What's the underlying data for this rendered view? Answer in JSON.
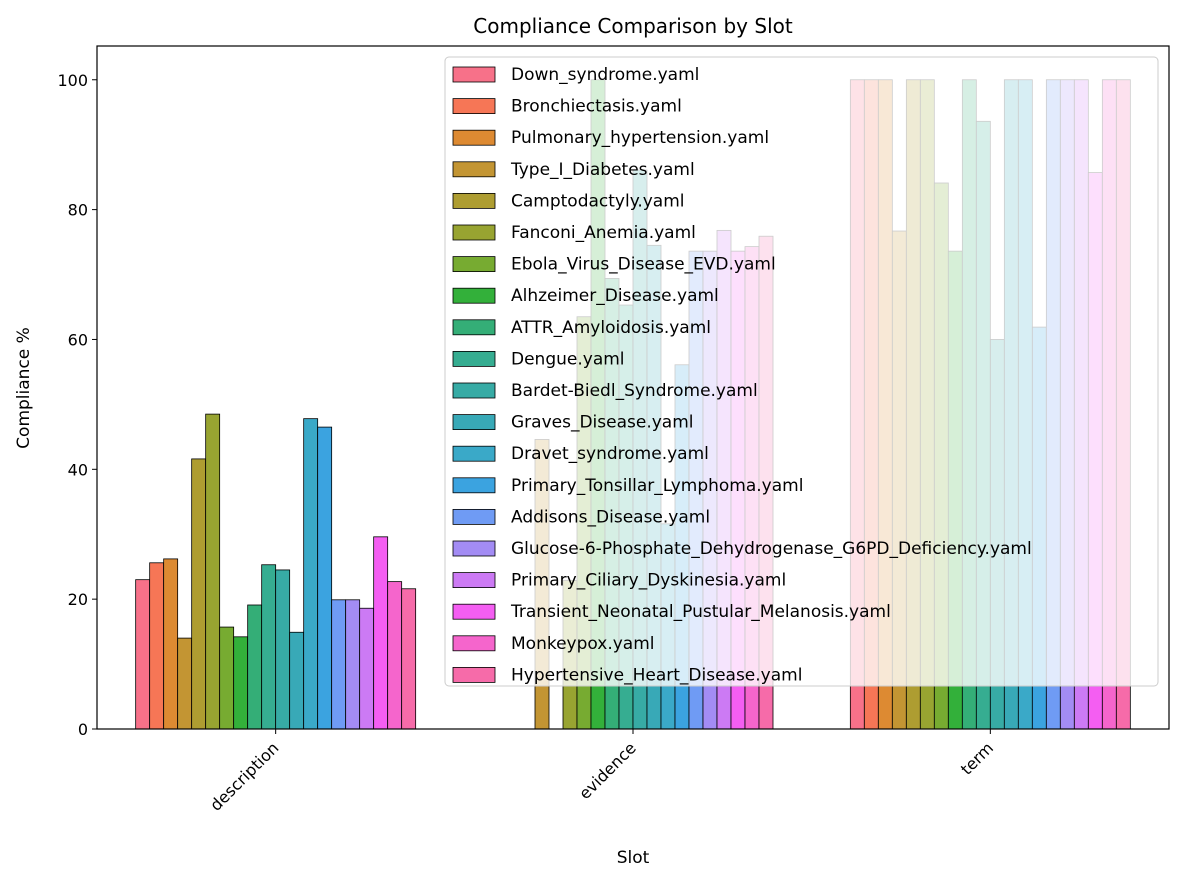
{
  "chart_data": {
    "type": "bar",
    "title": "Compliance Comparison by Slot",
    "xlabel": "Slot",
    "ylabel": "Compliance %",
    "ylim": [
      0,
      105.2
    ],
    "yticks": [
      0,
      20,
      40,
      60,
      80,
      100
    ],
    "grid": false,
    "legend_placement": "upper-right",
    "categories": [
      "description",
      "evidence",
      "term"
    ],
    "series": [
      {
        "name": "Down_syndrome.yaml",
        "color": "#f77189",
        "values": [
          23.0,
          null,
          100
        ]
      },
      {
        "name": "Bronchiectasis.yaml",
        "color": "#f67656",
        "values": [
          25.6,
          null,
          100
        ]
      },
      {
        "name": "Pulmonary_hypertension.yaml",
        "color": "#dd8a32",
        "values": [
          26.2,
          null,
          100
        ]
      },
      {
        "name": "Type_I_Diabetes.yaml",
        "color": "#c39533",
        "values": [
          14.0,
          44.6,
          76.7
        ]
      },
      {
        "name": "Camptodactyly.yaml",
        "color": "#ae9d31",
        "values": [
          41.6,
          null,
          100
        ]
      },
      {
        "name": "Fanconi_Anemia.yaml",
        "color": "#98a431",
        "values": [
          48.5,
          22.9,
          100
        ]
      },
      {
        "name": "Ebola_Virus_Disease_EVD.yaml",
        "color": "#77ab31",
        "values": [
          15.7,
          63.5,
          84.1
        ]
      },
      {
        "name": "Alhzeimer_Disease.yaml",
        "color": "#33b03a",
        "values": [
          14.2,
          100,
          73.6
        ]
      },
      {
        "name": "ATTR_Amyloidosis.yaml",
        "color": "#34ae77",
        "values": [
          19.1,
          69.4,
          100
        ]
      },
      {
        "name": "Dengue.yaml",
        "color": "#36ad91",
        "values": [
          25.3,
          65.3,
          93.6
        ]
      },
      {
        "name": "Bardet-Biedl_Syndrome.yaml",
        "color": "#37aba5",
        "values": [
          24.5,
          86.1,
          60.0
        ]
      },
      {
        "name": "Graves_Disease.yaml",
        "color": "#38a9b7",
        "values": [
          14.9,
          74.5,
          100
        ]
      },
      {
        "name": "Dravet_syndrome.yaml",
        "color": "#3aa9c8",
        "values": [
          47.8,
          31.6,
          100
        ]
      },
      {
        "name": "Primary_Tonsillar_Lymphoma.yaml",
        "color": "#3ba3e0",
        "values": [
          46.5,
          56.1,
          61.9
        ]
      },
      {
        "name": "Addisons_Disease.yaml",
        "color": "#6f9bf4",
        "values": [
          19.9,
          73.6,
          100
        ]
      },
      {
        "name": "Glucose-6-Phosphate_Dehydrogenase_G6PD_Deficiency.yaml",
        "color": "#a38cf4",
        "values": [
          19.9,
          73.6,
          100
        ]
      },
      {
        "name": "Primary_Ciliary_Dyskinesia.yaml",
        "color": "#cc7af4",
        "values": [
          18.6,
          76.8,
          100
        ]
      },
      {
        "name": "Transient_Neonatal_Pustular_Melanosis.yaml",
        "color": "#f45ef2",
        "values": [
          29.6,
          73.6,
          85.7
        ]
      },
      {
        "name": "Monkeypox.yaml",
        "color": "#f565cc",
        "values": [
          22.7,
          74.3,
          100
        ]
      },
      {
        "name": "Hypertensive_Heart_Disease.yaml",
        "color": "#f66ba9",
        "values": [
          21.6,
          75.9,
          100
        ]
      }
    ]
  }
}
